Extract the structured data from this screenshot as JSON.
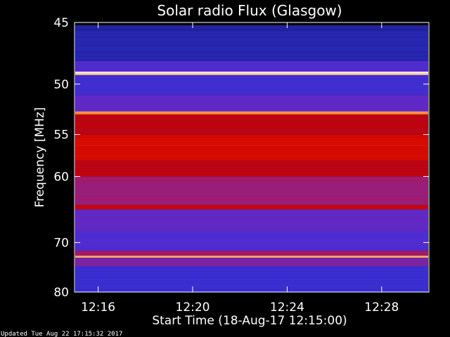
{
  "chart_data": {
    "type": "heatmap",
    "title": "Solar radio Flux (Glasgow)",
    "xlabel": "Start Time (18-Aug-17 12:15:00)",
    "ylabel": "Frequency [MHz]",
    "x_ticks": [
      "12:16",
      "12:20",
      "12:24",
      "12:28"
    ],
    "x_tick_minutes": [
      1,
      5,
      9,
      13
    ],
    "xlim_minutes": [
      0,
      15
    ],
    "y_ticks": [
      45,
      50,
      55,
      60,
      70,
      80
    ],
    "ylim": [
      45,
      80
    ],
    "scale": "reciprocal frequency",
    "colormap": [
      "#1a1a88",
      "#3030d0",
      "#5a2ad0",
      "#a01c70",
      "#c00000",
      "#ff2000",
      "#ff9040",
      "#ffffff"
    ],
    "bands_mhz": [
      {
        "from": 45.2,
        "to": 45.6,
        "level": 0.05
      },
      {
        "from": 45.6,
        "to": 48.0,
        "level": 0.08
      },
      {
        "from": 48.0,
        "to": 48.9,
        "level": 0.25
      },
      {
        "from": 48.9,
        "to": 49.2,
        "level": 0.95
      },
      {
        "from": 49.2,
        "to": 51.0,
        "level": 0.2
      },
      {
        "from": 51.0,
        "to": 52.6,
        "level": 0.3
      },
      {
        "from": 52.6,
        "to": 52.9,
        "level": 0.85
      },
      {
        "from": 52.9,
        "to": 55.0,
        "level": 0.55
      },
      {
        "from": 55.0,
        "to": 58.0,
        "level": 0.62
      },
      {
        "from": 58.0,
        "to": 60.0,
        "level": 0.55
      },
      {
        "from": 60.0,
        "to": 64.0,
        "level": 0.42
      },
      {
        "from": 64.0,
        "to": 64.6,
        "level": 0.6
      },
      {
        "from": 64.6,
        "to": 68.0,
        "level": 0.3
      },
      {
        "from": 68.0,
        "to": 71.5,
        "level": 0.25
      },
      {
        "from": 71.5,
        "to": 72.4,
        "level": 0.45
      },
      {
        "from": 72.4,
        "to": 72.8,
        "level": 0.9
      },
      {
        "from": 72.8,
        "to": 74.5,
        "level": 0.35
      },
      {
        "from": 74.5,
        "to": 80.0,
        "level": 0.18
      }
    ],
    "footer": "Updated Tue Aug 22 17:15:32 2017"
  }
}
